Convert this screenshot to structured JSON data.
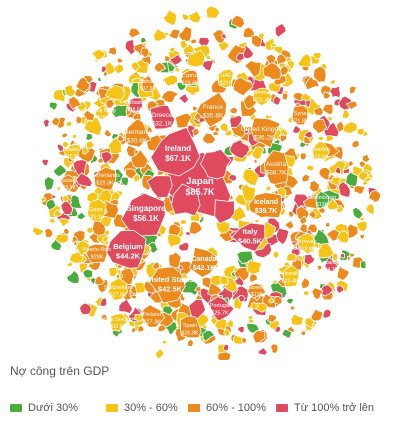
{
  "colors": {
    "green": "#4bab3f",
    "yellow": "#f5c416",
    "orange": "#ec8a1e",
    "red": "#e04a5f",
    "outline": "#ffffff"
  },
  "map": {
    "countries": [
      {
        "name": "Japan",
        "value": "$85.7K",
        "color": "red",
        "bold": true
      },
      {
        "name": "Ireland",
        "value": "$67.1K",
        "color": "red",
        "bold": true
      },
      {
        "name": "Singapore",
        "value": "$56.1K",
        "color": "red",
        "bold": true
      },
      {
        "name": "Belgium",
        "value": "$44.2K",
        "color": "red",
        "bold": true
      },
      {
        "name": "United States",
        "value": "$42.5K",
        "color": "orange",
        "bold": true
      },
      {
        "name": "Canada",
        "value": "$42.1K",
        "color": "orange",
        "bold": true
      },
      {
        "name": "Italy",
        "value": "$40.5K",
        "color": "red",
        "bold": true
      },
      {
        "name": "Iceland",
        "value": "$39.7K",
        "color": "orange",
        "bold": true
      },
      {
        "name": "Austria",
        "value": "$38.7K",
        "color": "orange",
        "bold": false
      },
      {
        "name": "United Kingdom",
        "value": "$36.2K",
        "color": "orange",
        "bold": false
      },
      {
        "name": "France",
        "value": "$35.8K",
        "color": "orange",
        "bold": false
      },
      {
        "name": "Greece",
        "value": "$32.1K",
        "color": "red",
        "bold": false
      },
      {
        "name": "Germany",
        "value": "$30.6K",
        "color": "orange",
        "bold": false
      },
      {
        "name": "Netherlands",
        "value": "$29.3K",
        "color": "orange",
        "bold": false
      },
      {
        "name": "Qatar",
        "value": "$29.1K",
        "color": "yellow",
        "bold": false
      },
      {
        "name": "Puerto Rico",
        "value": "$28K",
        "color": "orange",
        "bold": false
      },
      {
        "name": "Switzerland",
        "value": "$27.5K",
        "color": "yellow",
        "bold": false
      },
      {
        "name": "Finland",
        "value": "$27.3K",
        "color": "orange",
        "bold": false
      },
      {
        "name": "Spain",
        "value": "$26.8K",
        "color": "orange",
        "bold": false
      },
      {
        "name": "Portugal",
        "value": "$25.7K",
        "color": "red",
        "bold": false
      },
      {
        "name": "Norway",
        "value": "$23.8K",
        "color": "yellow",
        "bold": false
      },
      {
        "name": "Australia",
        "value": "$23.4K",
        "color": "yellow",
        "bold": false
      },
      {
        "name": "Sweden",
        "value": "$22.8K",
        "color": "yellow",
        "bold": false
      },
      {
        "name": "Syria",
        "value": "$21.8K",
        "color": "orange",
        "bold": false
      },
      {
        "name": "Denmark",
        "value": "$21.4K",
        "color": "yellow",
        "bold": false
      },
      {
        "name": "UAE",
        "value": "$21K",
        "color": "yellow",
        "bold": false
      },
      {
        "name": "Cyprus",
        "value": "$19.4K",
        "color": "orange",
        "bold": false
      },
      {
        "name": "Barbados",
        "value": "$18.6K",
        "color": "red",
        "bold": false
      },
      {
        "name": "Bahrain",
        "value": "$17.9K",
        "color": "orange",
        "bold": false
      },
      {
        "name": "Malta",
        "value": "$15.5K",
        "color": "yellow",
        "bold": false
      },
      {
        "name": "Hong Kong",
        "value": "$15K",
        "color": "yellow",
        "bold": false
      },
      {
        "name": "Israel",
        "value": "$15.5K",
        "color": "orange",
        "bold": false
      },
      {
        "name": "Slovenia",
        "value": "$15K",
        "color": "orange",
        "bold": false
      },
      {
        "name": "Luxembourg",
        "value": "$13K",
        "color": "green",
        "bold": false
      },
      {
        "name": "Lebanon",
        "value": "$14.7K",
        "color": "red",
        "bold": false
      },
      {
        "name": "New Zealand",
        "value": "$11.5K",
        "color": "yellow",
        "bold": false
      }
    ]
  },
  "legend": {
    "title": "Nợ công trên GDP",
    "items": [
      {
        "label": "Dưới 30%",
        "color": "green"
      },
      {
        "label": "30% - 60%",
        "color": "yellow"
      },
      {
        "label": "60% - 100%",
        "color": "orange"
      },
      {
        "label": "Từ 100% trở lên",
        "color": "red"
      }
    ]
  }
}
